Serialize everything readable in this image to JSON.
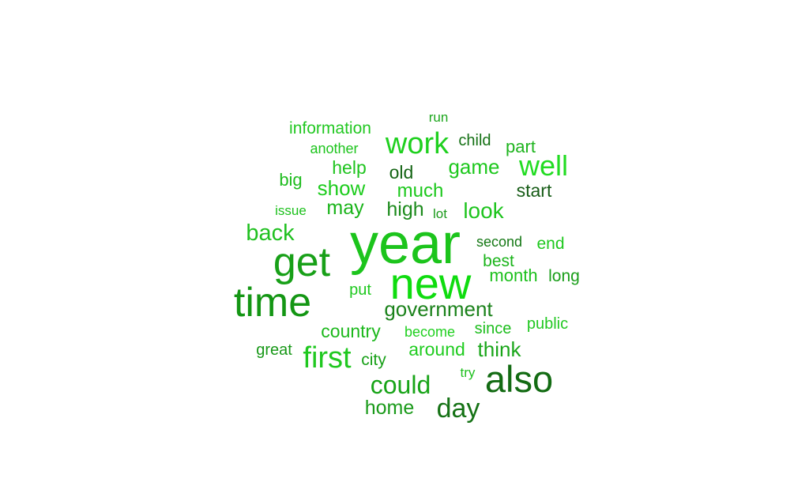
{
  "words": [
    {
      "text": "year",
      "color": "#1cc41c"
    },
    {
      "text": "new",
      "color": "#0fdc0f"
    },
    {
      "text": "get",
      "color": "#18a018"
    },
    {
      "text": "time",
      "color": "#149614"
    },
    {
      "text": "also",
      "color": "#136b13"
    },
    {
      "text": "work",
      "color": "#1fd01f"
    },
    {
      "text": "well",
      "color": "#22dc22"
    },
    {
      "text": "first",
      "color": "#20c820"
    },
    {
      "text": "could",
      "color": "#18a418"
    },
    {
      "text": "day",
      "color": "#157215"
    },
    {
      "text": "government",
      "color": "#1b821b"
    },
    {
      "text": "back",
      "color": "#20c020"
    },
    {
      "text": "look",
      "color": "#1ec41e"
    },
    {
      "text": "game",
      "color": "#1ec81e"
    },
    {
      "text": "show",
      "color": "#1ecc1e"
    },
    {
      "text": "much",
      "color": "#1cc81c"
    },
    {
      "text": "high",
      "color": "#1b8a1b"
    },
    {
      "text": "may",
      "color": "#1ab41a"
    },
    {
      "text": "help",
      "color": "#1ec41e"
    },
    {
      "text": "old",
      "color": "#146414"
    },
    {
      "text": "start",
      "color": "#175c17"
    },
    {
      "text": "home",
      "color": "#1a9a1a"
    },
    {
      "text": "think",
      "color": "#1aa61a"
    },
    {
      "text": "around",
      "color": "#20cc20"
    },
    {
      "text": "country",
      "color": "#1cb81c"
    },
    {
      "text": "information",
      "color": "#22c822"
    },
    {
      "text": "part",
      "color": "#1eb41e"
    },
    {
      "text": "child",
      "color": "#147014"
    },
    {
      "text": "month",
      "color": "#1cc01c"
    },
    {
      "text": "big",
      "color": "#1ebc1e"
    },
    {
      "text": "best",
      "color": "#1ab41a"
    },
    {
      "text": "end",
      "color": "#1ec81e"
    },
    {
      "text": "long",
      "color": "#1a9e1a"
    },
    {
      "text": "city",
      "color": "#18a018"
    },
    {
      "text": "since",
      "color": "#1ebe1e"
    },
    {
      "text": "public",
      "color": "#22c822"
    },
    {
      "text": "put",
      "color": "#1ec81e"
    },
    {
      "text": "great",
      "color": "#189818"
    },
    {
      "text": "second",
      "color": "#157815"
    },
    {
      "text": "another",
      "color": "#1cc41c"
    },
    {
      "text": "run",
      "color": "#1ca61c"
    },
    {
      "text": "become",
      "color": "#20d020"
    },
    {
      "text": "issue",
      "color": "#1cc01c"
    },
    {
      "text": "lot",
      "color": "#1c9a1c"
    },
    {
      "text": "try",
      "color": "#1ec01e"
    }
  ]
}
